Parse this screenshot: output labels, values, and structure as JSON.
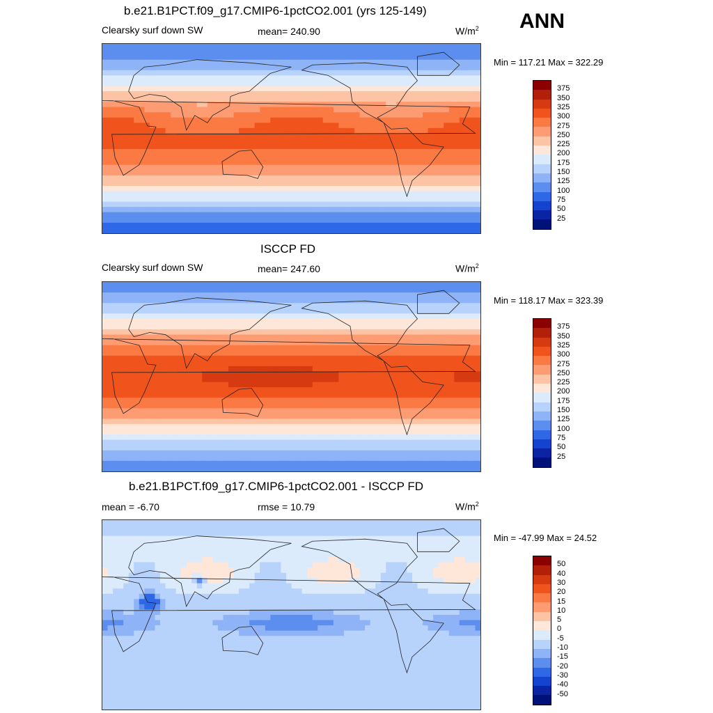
{
  "season": "ANN",
  "panels": [
    {
      "title": "b.e21.B1PCT.f09_g17.CMIP6-1pctCO2.001 (yrs 125-149)",
      "left_label": "Clearsky surf down SW",
      "center_label": "mean= 240.90",
      "units": "W/m",
      "units_sup": "2",
      "minmax": "Min = 117.21 Max = 322.29",
      "colorbar": {
        "labels": [
          "375",
          "350",
          "325",
          "300",
          "275",
          "250",
          "225",
          "200",
          "175",
          "150",
          "125",
          "100",
          "75",
          "50",
          "25"
        ],
        "colors": [
          "#8b0000",
          "#b3200a",
          "#d63a10",
          "#f0541c",
          "#fb7a44",
          "#fd9c72",
          "#fdc3a5",
          "#fee6d8",
          "#dcebfc",
          "#b7d2fb",
          "#8fb3f7",
          "#5c8ef0",
          "#2f68e6",
          "#1444cf",
          "#0a24a3",
          "#00127a"
        ]
      },
      "field": "model"
    },
    {
      "title": "ISCCP FD",
      "left_label": "Clearsky surf down SW",
      "center_label": "mean= 247.60",
      "units": "W/m",
      "units_sup": "2",
      "minmax": "Min = 118.17 Max = 323.39",
      "colorbar": {
        "labels": [
          "375",
          "350",
          "325",
          "300",
          "275",
          "250",
          "225",
          "200",
          "175",
          "150",
          "125",
          "100",
          "75",
          "50",
          "25"
        ],
        "colors": [
          "#8b0000",
          "#b3200a",
          "#d63a10",
          "#f0541c",
          "#fb7a44",
          "#fd9c72",
          "#fdc3a5",
          "#fee6d8",
          "#dcebfc",
          "#b7d2fb",
          "#8fb3f7",
          "#5c8ef0",
          "#2f68e6",
          "#1444cf",
          "#0a24a3",
          "#00127a"
        ]
      },
      "field": "obs"
    },
    {
      "title": "b.e21.B1PCT.f09_g17.CMIP6-1pctCO2.001 - ISCCP FD",
      "left_label": "mean =  -6.70",
      "center_label": "rmse =  10.79",
      "units": "W/m",
      "units_sup": "2",
      "minmax": "Min = -47.99 Max =  24.52",
      "colorbar": {
        "labels": [
          "50",
          "40",
          "30",
          "20",
          "15",
          "10",
          "5",
          "0",
          "-5",
          "-10",
          "-15",
          "-20",
          "-30",
          "-40",
          "-50"
        ],
        "colors": [
          "#8b0000",
          "#b3200a",
          "#d63a10",
          "#f0541c",
          "#fb7a44",
          "#fd9c72",
          "#fdc3a5",
          "#fee6d8",
          "#dcebfc",
          "#b7d2fb",
          "#8fb3f7",
          "#5c8ef0",
          "#2f68e6",
          "#1444cf",
          "#0a24a3",
          "#00127a"
        ]
      },
      "field": "diff"
    }
  ]
}
